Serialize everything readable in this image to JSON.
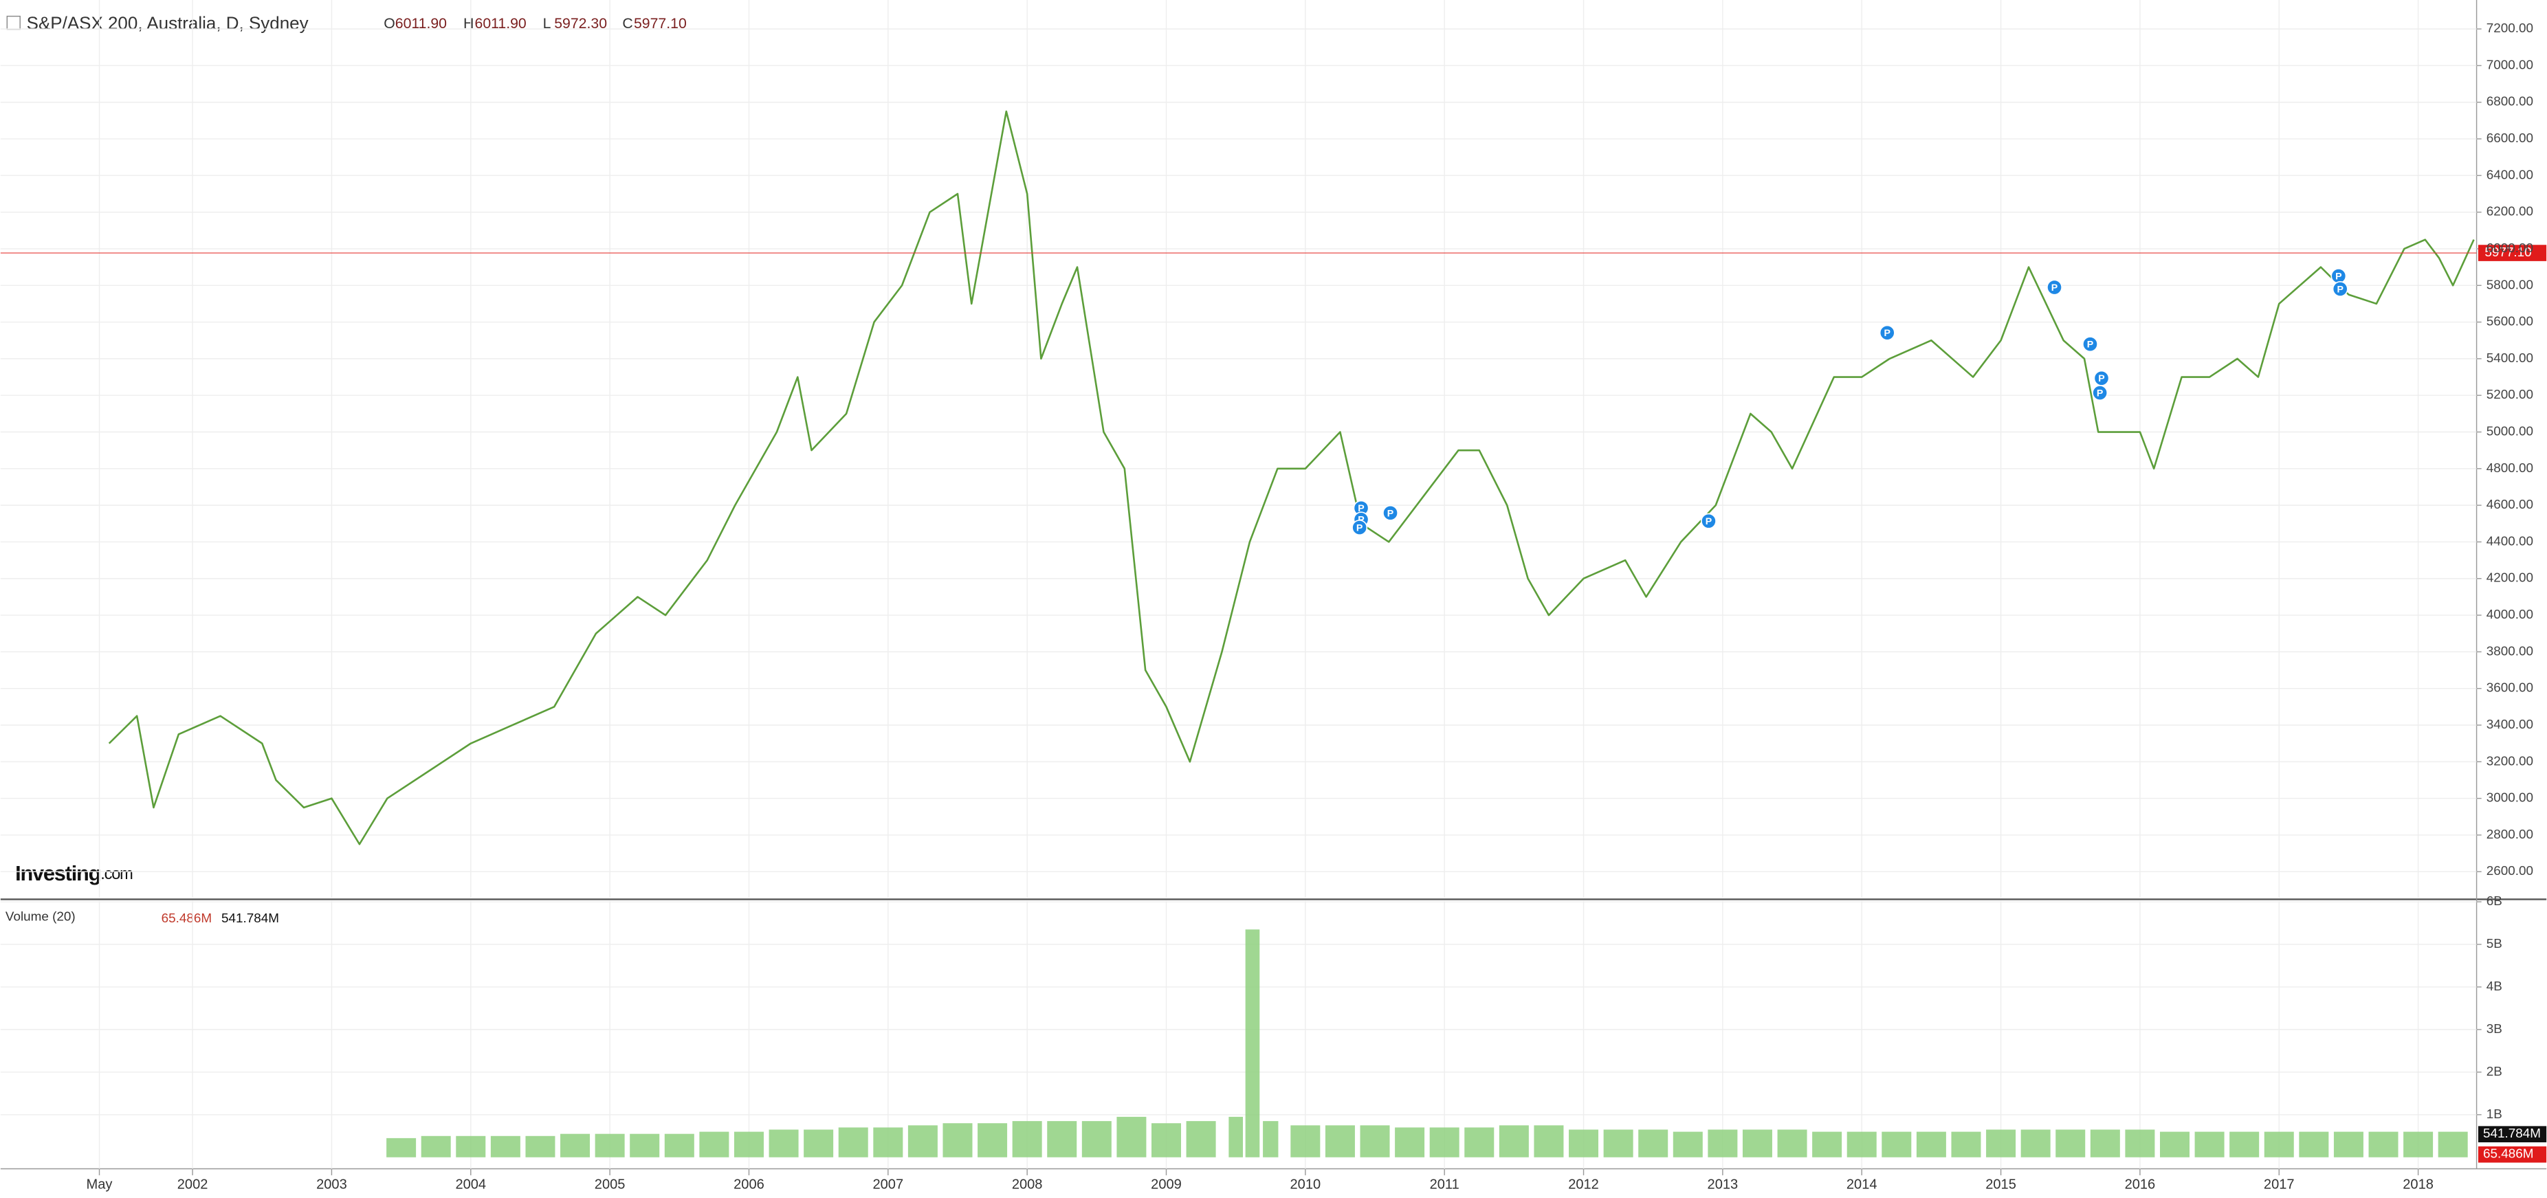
{
  "chart_data": [
    {
      "type": "line",
      "title": "S&P/ASX 200, Australia, D, Sydney",
      "ohlc": [
        {
          "label": "O",
          "value": "6011.90"
        },
        {
          "label": "H",
          "value": "6011.90"
        },
        {
          "label": "L",
          "value": "5972.30"
        },
        {
          "label": "C",
          "value": "5977.10"
        }
      ],
      "x": [
        2001.4,
        2001.6,
        2001.72,
        2001.9,
        2002.2,
        2002.5,
        2002.6,
        2002.8,
        2003.0,
        2003.2,
        2003.4,
        2003.7,
        2004.0,
        2004.3,
        2004.6,
        2004.9,
        2005.2,
        2005.4,
        2005.7,
        2005.9,
        2006.2,
        2006.35,
        2006.45,
        2006.7,
        2006.9,
        2007.1,
        2007.3,
        2007.5,
        2007.6,
        2007.85,
        2008.0,
        2008.1,
        2008.25,
        2008.36,
        2008.55,
        2008.7,
        2008.85,
        2009.0,
        2009.17,
        2009.4,
        2009.6,
        2009.8,
        2010.0,
        2010.25,
        2010.4,
        2010.6,
        2010.9,
        2011.1,
        2011.25,
        2011.45,
        2011.6,
        2011.75,
        2012.0,
        2012.3,
        2012.45,
        2012.7,
        2012.95,
        2013.2,
        2013.35,
        2013.5,
        2013.8,
        2014.0,
        2014.2,
        2014.5,
        2014.8,
        2015.0,
        2015.2,
        2015.45,
        2015.6,
        2015.7,
        2016.0,
        2016.1,
        2016.3,
        2016.5,
        2016.7,
        2016.85,
        2017.0,
        2017.3,
        2017.5,
        2017.7,
        2017.9,
        2018.05,
        2018.15,
        2018.25,
        2018.4
      ],
      "values": [
        3300,
        3450,
        2950,
        3350,
        3450,
        3300,
        3100,
        2950,
        3000,
        2750,
        3000,
        3150,
        3300,
        3400,
        3500,
        3900,
        4100,
        4000,
        4300,
        4600,
        5000,
        5300,
        4900,
        5100,
        5600,
        5800,
        6200,
        6300,
        5700,
        6750,
        6300,
        5400,
        5700,
        5900,
        5000,
        4800,
        3700,
        3500,
        3200,
        3800,
        4400,
        4800,
        4800,
        5000,
        4500,
        4400,
        4700,
        4900,
        4900,
        4600,
        4200,
        4000,
        4200,
        4300,
        4100,
        4400,
        4600,
        5100,
        5000,
        4800,
        5300,
        5300,
        5400,
        5500,
        5300,
        5500,
        5900,
        5500,
        5400,
        5000,
        5000,
        4800,
        5300,
        5300,
        5400,
        5300,
        5700,
        5900,
        5750,
        5700,
        6000,
        6050,
        5950,
        5800,
        6050
      ],
      "color": "#5c9e3a",
      "last_price": {
        "value": 5977.1,
        "label": "5977.10"
      },
      "event_marker": "P",
      "logo": [
        "Investing",
        ".com"
      ],
      "xlim": [
        2000.62,
        2018.42
      ],
      "ylim": [
        2458,
        7358
      ],
      "yticks": [
        {
          "value": 2600,
          "label": "2600.00"
        },
        {
          "value": 2800,
          "label": "2800.00"
        },
        {
          "value": 3000,
          "label": "3000.00"
        },
        {
          "value": 3200,
          "label": "3200.00"
        },
        {
          "value": 3400,
          "label": "3400.00"
        },
        {
          "value": 3600,
          "label": "3600.00"
        },
        {
          "value": 3800,
          "label": "3800.00"
        },
        {
          "value": 4000,
          "label": "4000.00"
        },
        {
          "value": 4200,
          "label": "4200.00"
        },
        {
          "value": 4400,
          "label": "4400.00"
        },
        {
          "value": 4600,
          "label": "4600.00"
        },
        {
          "value": 4800,
          "label": "4800.00"
        },
        {
          "value": 5000,
          "label": "5000.00"
        },
        {
          "value": 5200,
          "label": "5200.00"
        },
        {
          "value": 5400,
          "label": "5400.00"
        },
        {
          "value": 5600,
          "label": "5600.00"
        },
        {
          "value": 5800,
          "label": "5800.00"
        },
        {
          "value": 6000,
          "label": "6000.00"
        },
        {
          "value": 6200,
          "label": "6200.00"
        },
        {
          "value": 6400,
          "label": "6400.00"
        },
        {
          "value": 6600,
          "label": "6600.00"
        },
        {
          "value": 6800,
          "label": "6800.00"
        },
        {
          "value": 7000,
          "label": "7000.00"
        },
        {
          "value": 7200,
          "label": "7200.00"
        }
      ],
      "grid": true
    },
    {
      "type": "bar",
      "title": "Volume (20)",
      "x": [
        2003.5,
        2003.75,
        2004.0,
        2004.25,
        2004.5,
        2004.75,
        2005.0,
        2005.25,
        2005.5,
        2005.75,
        2006.0,
        2006.25,
        2006.5,
        2006.75,
        2007.0,
        2007.25,
        2007.5,
        2007.75,
        2008.0,
        2008.25,
        2008.5,
        2008.75,
        2009.0,
        2009.25,
        2009.5,
        2009.62,
        2009.75,
        2010.0,
        2010.25,
        2010.5,
        2010.75,
        2011.0,
        2011.25,
        2011.5,
        2011.75,
        2012.0,
        2012.25,
        2012.5,
        2012.75,
        2013.0,
        2013.25,
        2013.5,
        2013.75,
        2014.0,
        2014.25,
        2014.5,
        2014.75,
        2015.0,
        2015.25,
        2015.5,
        2015.75,
        2016.0,
        2016.25,
        2016.5,
        2016.75,
        2017.0,
        2017.25,
        2017.5,
        2017.75,
        2018.0,
        2018.25
      ],
      "values": [
        0.45,
        0.5,
        0.5,
        0.5,
        0.5,
        0.55,
        0.55,
        0.55,
        0.55,
        0.6,
        0.6,
        0.65,
        0.65,
        0.7,
        0.7,
        0.75,
        0.8,
        0.8,
        0.85,
        0.85,
        0.85,
        0.95,
        0.8,
        0.85,
        0.95,
        5.35,
        0.85,
        0.75,
        0.75,
        0.75,
        0.7,
        0.7,
        0.7,
        0.75,
        0.75,
        0.65,
        0.65,
        0.65,
        0.6,
        0.65,
        0.65,
        0.65,
        0.6,
        0.6,
        0.6,
        0.6,
        0.6,
        0.65,
        0.65,
        0.65,
        0.65,
        0.65,
        0.6,
        0.6,
        0.6,
        0.6,
        0.6,
        0.6,
        0.6,
        0.6,
        0.6
      ],
      "color": "#8fd07f",
      "volume_current": {
        "value": 0.065486,
        "label": "65.486M"
      },
      "volume_ma": {
        "value": 0.541784,
        "label": "541.784M"
      },
      "xlim": [
        2000.62,
        2018.42
      ],
      "ylim": [
        -0.27,
        6.02
      ],
      "yticks": [
        {
          "value": 1,
          "label": "1B"
        },
        {
          "value": 2,
          "label": "2B"
        },
        {
          "value": 3,
          "label": "3B"
        },
        {
          "value": 4,
          "label": "4B"
        },
        {
          "value": 5,
          "label": "5B"
        },
        {
          "value": 6,
          "label": "6B"
        }
      ],
      "xticks": [
        {
          "value": 2001.33,
          "label": "May"
        },
        2002,
        2003,
        2004,
        2005,
        2006,
        2007,
        2008,
        2009,
        2010,
        2011,
        2012,
        2013,
        2014,
        2015,
        2016,
        2017,
        2018
      ]
    }
  ]
}
